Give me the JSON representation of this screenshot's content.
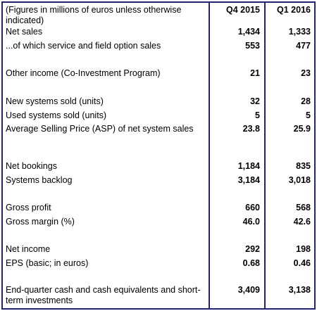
{
  "table": {
    "header": {
      "label": "(Figures in millions of euros unless otherwise indicated)",
      "columns": [
        "Q4 2015",
        "Q1 2016"
      ]
    },
    "rows": [
      [
        "Net sales",
        "1,434",
        "1,333"
      ],
      [
        "...of which service and field option sales",
        "553",
        "477"
      ],
      [
        "Other income (Co-Investment Program)",
        "21",
        "23"
      ],
      [
        "New systems sold (units)",
        "32",
        "28"
      ],
      [
        "Used systems sold (units)",
        "5",
        "5"
      ],
      [
        "Average Selling Price (ASP) of net system sales",
        "23.8",
        "25.9"
      ],
      [
        "Net bookings",
        "1,184",
        "835"
      ],
      [
        "Systems backlog",
        "3,184",
        "3,018"
      ],
      [
        "Gross profit",
        "660",
        "568"
      ],
      [
        "Gross margin (%)",
        "46.0",
        "42.6"
      ],
      [
        "Net income",
        "292",
        "198"
      ],
      [
        "EPS (basic; in euros)",
        "0.68",
        "0.46"
      ],
      [
        "End-quarter cash and cash equivalents and short-term investments",
        "3,409",
        "3,138"
      ]
    ]
  }
}
